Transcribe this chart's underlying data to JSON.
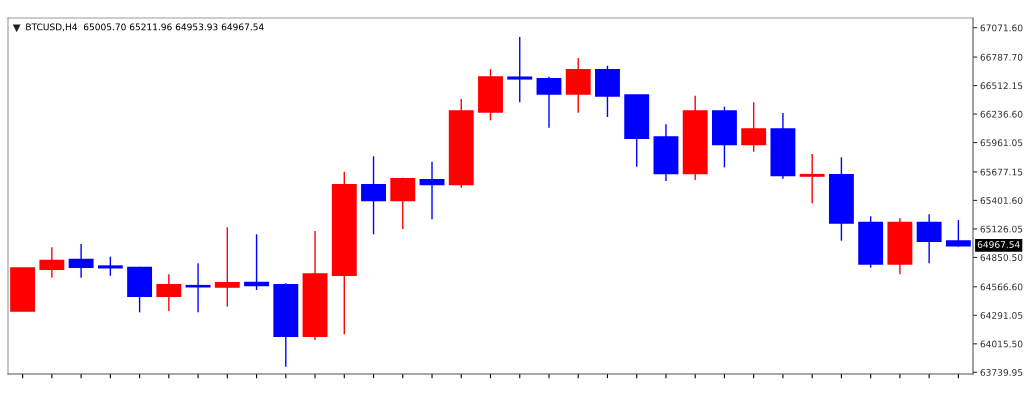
{
  "chart_data": {
    "type": "candlestick",
    "title": "BTCUSD,H4  65005.70 65211.96 64953.93 64967.54",
    "categories": [
      null,
      null,
      null,
      null,
      null,
      null,
      null,
      null,
      null,
      null,
      null,
      null,
      null,
      null,
      null,
      null,
      null,
      null,
      null,
      null,
      null,
      null,
      null,
      null,
      null,
      null,
      null,
      null,
      null,
      null,
      null,
      null,
      null
    ],
    "ohlc": [
      [
        64335.6,
        64745.6,
        64335.6,
        64745.6
      ],
      [
        64738.6,
        64948.6,
        64654.6,
        64819.0
      ],
      [
        64828.6,
        64980.6,
        64654.6,
        64758.0
      ],
      [
        64764.0,
        64857.6,
        64674.0,
        64754.0
      ],
      [
        64751.6,
        64760.0,
        64320.0,
        64477.6
      ],
      [
        64477.6,
        64687.6,
        64332.6,
        64584.0
      ],
      [
        64575.0,
        64793.8,
        64320.0,
        64570.0
      ],
      [
        64567.6,
        65141.9,
        64374.6,
        64603.6
      ],
      [
        64606.6,
        65074.6,
        64535.6,
        64581.0
      ],
      [
        64584.0,
        64600.0,
        63794.0,
        64091.0
      ],
      [
        64091.0,
        65106.0,
        64052.0,
        64687.6
      ],
      [
        64680.6,
        65679.6,
        64107.6,
        65550.8
      ],
      [
        65550.8,
        65828.3,
        65074.6,
        65402.9
      ],
      [
        65402.9,
        65621.4,
        65125.6,
        65608.8
      ],
      [
        65599.2,
        65776.1,
        65219.2,
        65557.6
      ],
      [
        65557.6,
        66382.3,
        65524.7,
        66263.4
      ],
      [
        66259.6,
        66669.4,
        66176.3,
        66592.1
      ],
      [
        66590.0,
        66981.7,
        66350.4,
        66580.0
      ],
      [
        66575.6,
        66597.9,
        66104.8,
        66433.6
      ],
      [
        66433.6,
        66778.6,
        66249.8,
        66662.6
      ],
      [
        66662.6,
        66704.2,
        66208.2,
        66414.2
      ],
      [
        66418.0,
        66418.0,
        65727.7,
        66005.2
      ],
      [
        66012.0,
        66137.6,
        65589.6,
        65663.9
      ],
      [
        65663.9,
        66414.2,
        65599.2,
        66263.4
      ],
      [
        66263.4,
        66307.8,
        65721.9,
        65944.3
      ],
      [
        65944.3,
        66350.4,
        65872.8,
        66089.3
      ],
      [
        66089.3,
        66246.9,
        65611.7,
        65644.6
      ],
      [
        65640.0,
        65850.6,
        65373.9,
        65648.0
      ],
      [
        65648.0,
        65818.6,
        65012.3,
        65186.3
      ],
      [
        65186.3,
        65248.2,
        64751.6,
        64790.0
      ],
      [
        64790.0,
        65228.9,
        64687.6,
        65186.3
      ],
      [
        65186.3,
        65267.6,
        64793.8,
        65009.4
      ],
      [
        65005.7,
        65211.96,
        64953.93,
        64967.54
      ]
    ],
    "colors": [
      "#ff0000",
      "#ff0000",
      "#0000ff",
      "#0000ff",
      "#0000ff",
      "#ff0000",
      "#0000ff",
      "#ff0000",
      "#0000ff",
      "#0000ff",
      "#ff0000",
      "#ff0000",
      "#0000ff",
      "#ff0000",
      "#0000ff",
      "#ff0000",
      "#ff0000",
      "#0000ff",
      "#0000ff",
      "#ff0000",
      "#0000ff",
      "#0000ff",
      "#0000ff",
      "#ff0000",
      "#0000ff",
      "#ff0000",
      "#0000ff",
      "#ff0000",
      "#0000ff",
      "#0000ff",
      "#ff0000",
      "#0000ff",
      "#0000ff"
    ],
    "ylim": [
      63723.6,
      67165.4
    ],
    "yticks": [
      {
        "value": 67071.6,
        "label": "67071.60"
      },
      {
        "value": 66787.7,
        "label": "66787.70"
      },
      {
        "value": 66512.15,
        "label": "66512.15"
      },
      {
        "value": 66236.6,
        "label": "66236.60"
      },
      {
        "value": 65961.05,
        "label": "65961.05"
      },
      {
        "value": 65677.15,
        "label": "65677.15"
      },
      {
        "value": 65401.6,
        "label": "65401.60"
      },
      {
        "value": 65126.05,
        "label": "65126.05"
      },
      {
        "value": 64850.5,
        "label": "64850.50"
      },
      {
        "value": 64566.6,
        "label": "64566.60"
      },
      {
        "value": 64291.05,
        "label": "64291.05"
      },
      {
        "value": 64015.5,
        "label": "64015.50"
      },
      {
        "value": 63739.95,
        "label": "63739.95"
      }
    ],
    "annotations": [
      "64967.54"
    ],
    "grid": false
  }
}
